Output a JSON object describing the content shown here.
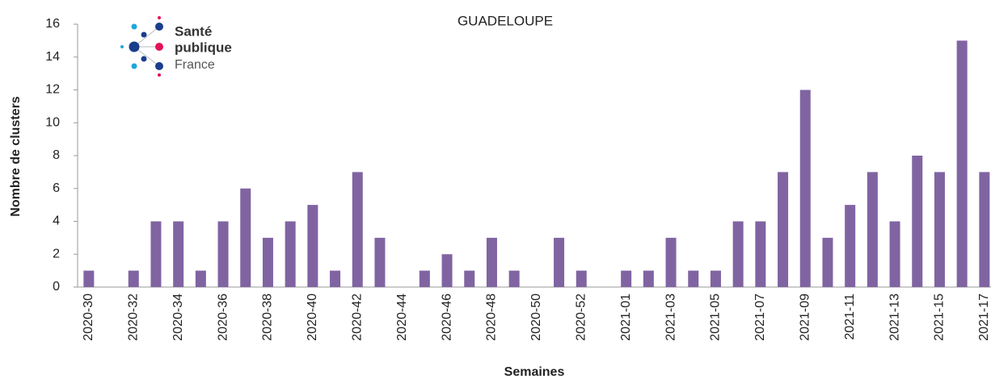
{
  "chart_data": {
    "type": "bar",
    "title": "GUADELOUPE",
    "logo": {
      "line1": "Santé",
      "line2": "publique",
      "line3": "France"
    },
    "x_label": "Semaines",
    "y_label": "Nombre de clusters",
    "categories": [
      "2020-30",
      null,
      "2020-32",
      null,
      "2020-34",
      null,
      "2020-36",
      null,
      "2020-38",
      null,
      "2020-40",
      null,
      "2020-42",
      null,
      "2020-44",
      null,
      "2020-46",
      null,
      "2020-48",
      null,
      "2020-50",
      null,
      "2020-52",
      null,
      "2021-01",
      null,
      "2021-03",
      null,
      "2021-05",
      null,
      "2021-07",
      null,
      "2021-09",
      null,
      "2021-11",
      null,
      "2021-13",
      null,
      "2021-15",
      null,
      "2021-17"
    ],
    "values": [
      1,
      0,
      1,
      4,
      4,
      1,
      4,
      6,
      3,
      4,
      5,
      1,
      7,
      3,
      0,
      1,
      2,
      1,
      3,
      1,
      0,
      3,
      1,
      0,
      1,
      1,
      3,
      1,
      1,
      4,
      4,
      7,
      12,
      3,
      5,
      7,
      4,
      8,
      7,
      15,
      7
    ],
    "color": "#8064a2",
    "ylim": [
      0,
      16
    ],
    "yticks": [
      0,
      2,
      4,
      6,
      8,
      10,
      12,
      14,
      16
    ],
    "grid": false
  }
}
